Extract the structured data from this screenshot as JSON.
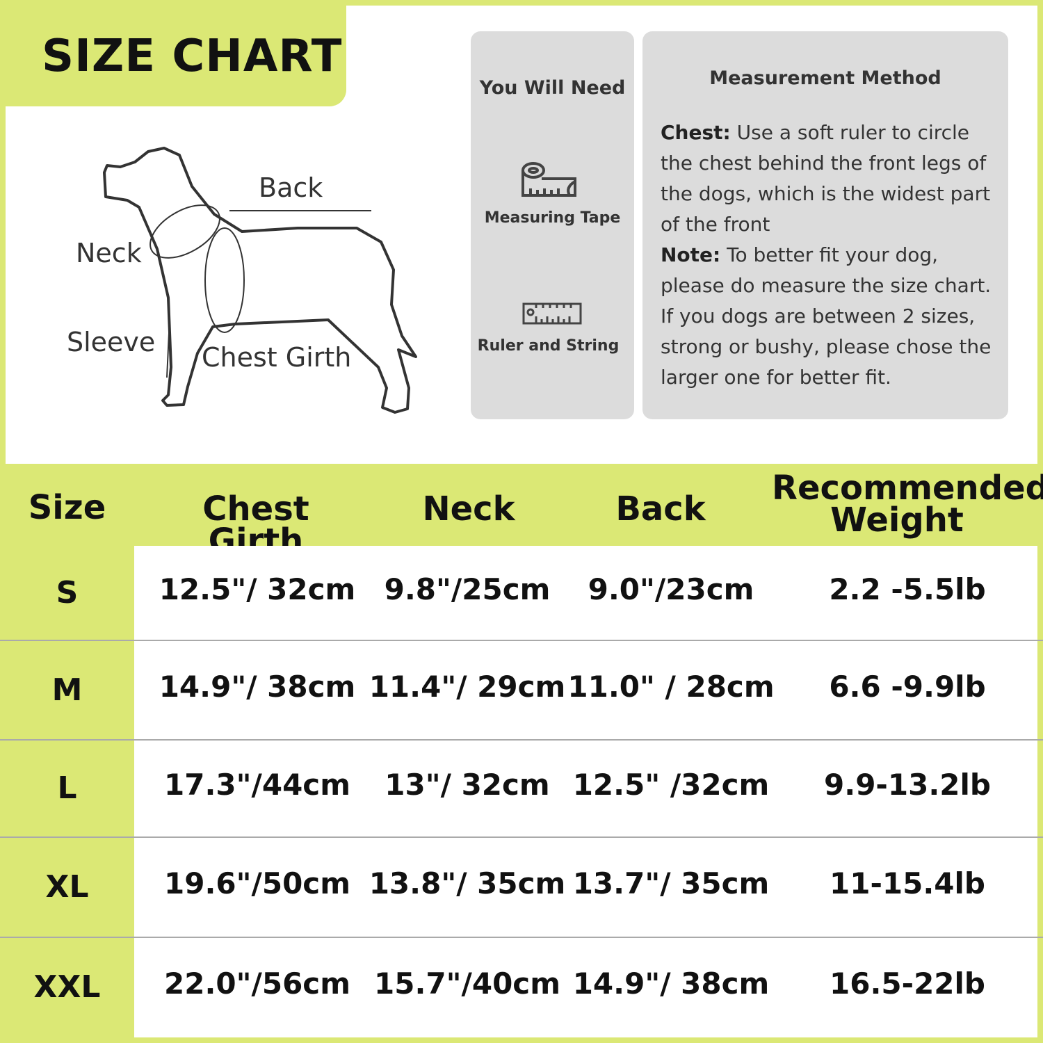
{
  "title": "SIZE CHART",
  "diagram": {
    "labels": {
      "back": "Back",
      "neck": "Neck",
      "sleeve": "Sleeve",
      "chest": "Chest Girth"
    }
  },
  "you_will_need": {
    "title": "You Will Need",
    "items": [
      {
        "label": "Measuring Tape",
        "icon": "measuring-tape-icon"
      },
      {
        "label": "Ruler and String",
        "icon": "ruler-icon"
      }
    ]
  },
  "method": {
    "title": "Measurement Method",
    "chest_label": "Chest:",
    "chest_text": " Use a soft ruler to circle the chest behind the front legs of the dogs, which is the widest part of the front",
    "note_label": "Note:",
    "note_text": " To better fit your dog, please do measure the size chart. If you dogs are between 2 sizes, strong or bushy, please chose the larger one for better fit."
  },
  "table": {
    "headers": [
      "Size",
      "Chest Girth",
      "Neck",
      "Back",
      "Recommended Weight"
    ],
    "rows": [
      [
        "S",
        "12.5\"/ 32cm",
        "9.8\"/25cm",
        "9.0\"/23cm",
        "2.2 -5.5lb"
      ],
      [
        "M",
        "14.9\"/ 38cm",
        "11.4\"/ 29cm",
        "11.0\" / 28cm",
        "6.6 -9.9lb"
      ],
      [
        "L",
        "17.3\"/44cm",
        "13\"/ 32cm",
        "12.5\" /32cm",
        "9.9-13.2lb"
      ],
      [
        "XL",
        "19.6\"/50cm",
        "13.8\"/ 35cm",
        "13.7\"/ 35cm",
        "11-15.4lb"
      ],
      [
        "XXL",
        "22.0\"/56cm",
        "15.7\"/40cm",
        "14.9\"/ 38cm",
        "16.5-22lb"
      ]
    ]
  },
  "colors": {
    "accent": "#dbe875",
    "card": "#dcdcdc"
  }
}
